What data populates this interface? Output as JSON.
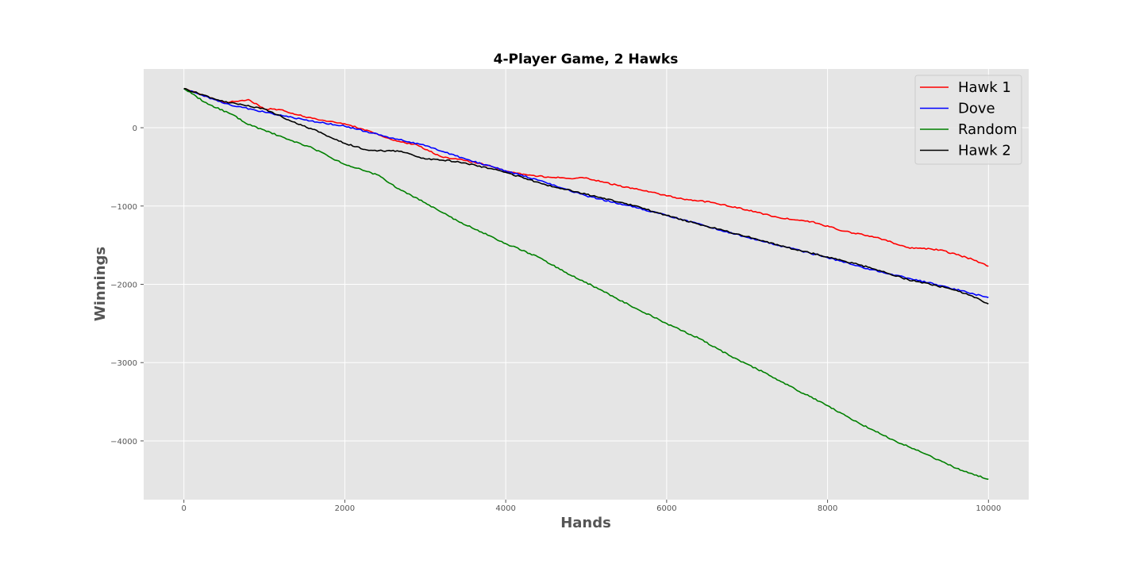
{
  "chart_data": {
    "type": "line",
    "title": "4-Player Game, 2 Hawks",
    "xlabel": "Hands",
    "ylabel": "Winnings",
    "xlim": [
      -500,
      10500
    ],
    "ylim": [
      -4750,
      750
    ],
    "xticks": [
      0,
      2000,
      4000,
      6000,
      8000,
      10000
    ],
    "xtick_labels": [
      "0",
      "2000",
      "4000",
      "6000",
      "8000",
      "10000"
    ],
    "yticks": [
      -4000,
      -3000,
      -2000,
      -1000,
      0
    ],
    "ytick_labels": [
      "−4000",
      "−3000",
      "−2000",
      "−1000",
      "0"
    ],
    "grid": true,
    "legend_position": "top-right",
    "series": [
      {
        "name": "Hawk 1",
        "color": "#ff0000",
        "x": [
          0,
          500,
          800,
          1000,
          1200,
          1500,
          1800,
          2000,
          2300,
          2600,
          2900,
          3200,
          3500,
          3800,
          4000,
          4400,
          4800,
          5000,
          5400,
          5800,
          6200,
          6600,
          7000,
          7400,
          7800,
          8200,
          8600,
          9000,
          9400,
          9800,
          10000
        ],
        "y": [
          500,
          320,
          360,
          240,
          230,
          140,
          80,
          50,
          -40,
          -160,
          -220,
          -370,
          -420,
          -480,
          -560,
          -620,
          -650,
          -640,
          -740,
          -820,
          -910,
          -960,
          -1050,
          -1150,
          -1200,
          -1320,
          -1400,
          -1530,
          -1560,
          -1680,
          -1770
        ]
      },
      {
        "name": "Dove",
        "color": "#0000ff",
        "x": [
          0,
          500,
          1000,
          1500,
          2000,
          2500,
          3000,
          3500,
          4000,
          4500,
          5000,
          5500,
          6000,
          6500,
          7000,
          7500,
          8000,
          8500,
          9000,
          9500,
          10000
        ],
        "y": [
          500,
          310,
          200,
          100,
          20,
          -110,
          -230,
          -400,
          -550,
          -700,
          -870,
          -990,
          -1120,
          -1260,
          -1400,
          -1530,
          -1660,
          -1800,
          -1920,
          -2040,
          -2170
        ]
      },
      {
        "name": "Random",
        "color": "#008000",
        "x": [
          0,
          300,
          600,
          800,
          1000,
          1300,
          1600,
          2000,
          2400,
          2700,
          3000,
          3400,
          3800,
          4000,
          4400,
          4800,
          5200,
          5600,
          6000,
          6400,
          6800,
          7200,
          7600,
          8000,
          8400,
          8800,
          9200,
          9600,
          9800,
          10000
        ],
        "y": [
          500,
          300,
          170,
          40,
          -30,
          -150,
          -260,
          -470,
          -600,
          -800,
          -960,
          -1190,
          -1380,
          -1480,
          -1650,
          -1880,
          -2080,
          -2300,
          -2500,
          -2690,
          -2920,
          -3120,
          -3340,
          -3550,
          -3780,
          -3980,
          -4160,
          -4350,
          -4420,
          -4490
        ]
      },
      {
        "name": "Hawk 2",
        "color": "#000000",
        "x": [
          0,
          500,
          1000,
          1300,
          1600,
          2000,
          2300,
          2700,
          3000,
          3400,
          3800,
          4000,
          4500,
          5000,
          5500,
          6000,
          6500,
          7000,
          7500,
          8000,
          8500,
          9000,
          9500,
          9800,
          10000
        ],
        "y": [
          500,
          330,
          240,
          100,
          -20,
          -200,
          -290,
          -300,
          -400,
          -430,
          -520,
          -570,
          -730,
          -850,
          -970,
          -1120,
          -1260,
          -1390,
          -1530,
          -1650,
          -1780,
          -1940,
          -2050,
          -2150,
          -2250
        ]
      }
    ]
  }
}
